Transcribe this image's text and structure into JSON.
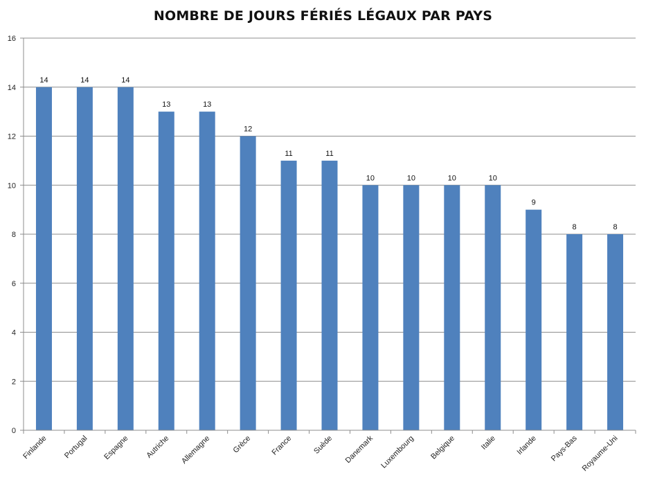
{
  "chart_data": {
    "type": "bar",
    "title": "NOMBRE DE JOURS FÉRIÉS LÉGAUX PAR PAYS",
    "xlabel": "",
    "ylabel": "",
    "ylim": [
      0,
      16
    ],
    "yticks": [
      0,
      2,
      4,
      6,
      8,
      10,
      12,
      14,
      16
    ],
    "grid": true,
    "legend": "none",
    "categories": [
      "Finlande",
      "Portugal",
      "Espagne",
      "Autriche",
      "Allemagne",
      "Grèce",
      "France",
      "Suède",
      "Danemark",
      "Luxembourg",
      "Belgique",
      "Italie",
      "Irlande",
      "Pays-Bas",
      "Royaume-Uni"
    ],
    "values": [
      14,
      14,
      14,
      13,
      13,
      12,
      11,
      11,
      10,
      10,
      10,
      10,
      9,
      8,
      8
    ],
    "colors": {
      "bar": "#4F81BD",
      "grid": "#8C8C8C",
      "axis": "#8C8C8C"
    }
  }
}
